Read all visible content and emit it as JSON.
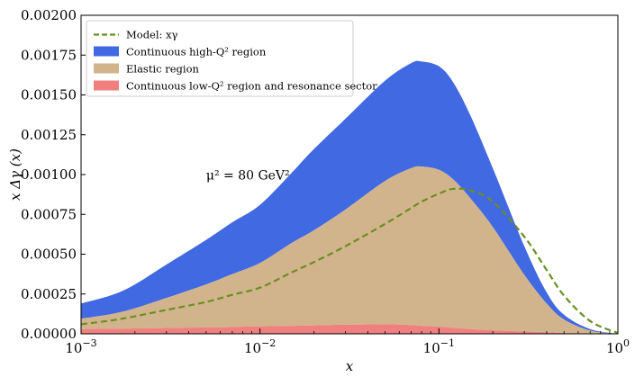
{
  "chart_data": {
    "type": "area",
    "x_scale": "log",
    "xlim": [
      0.001,
      1
    ],
    "ylim": [
      0,
      0.002
    ],
    "xlabel": "x",
    "ylabel": "x Δγ (x)",
    "x_ticks": [
      {
        "value": 0.001,
        "base": "10",
        "exp": "−3"
      },
      {
        "value": 0.01,
        "base": "10",
        "exp": "−2"
      },
      {
        "value": 0.1,
        "base": "10",
        "exp": "−1"
      },
      {
        "value": 1,
        "base": "10",
        "exp": "0"
      }
    ],
    "y_ticks": [
      {
        "value": 0,
        "label": "0.00000"
      },
      {
        "value": 0.00025,
        "label": "0.00025"
      },
      {
        "value": 0.0005,
        "label": "0.00050"
      },
      {
        "value": 0.00075,
        "label": "0.00075"
      },
      {
        "value": 0.001,
        "label": "0.00100"
      },
      {
        "value": 0.00125,
        "label": "0.00125"
      },
      {
        "value": 0.0015,
        "label": "0.00150"
      },
      {
        "value": 0.00175,
        "label": "0.00175"
      },
      {
        "value": 0.002,
        "label": "0.00200"
      }
    ],
    "grid": false,
    "legend_position": "top-left",
    "annotation": {
      "text": "μ² = 80 GeV²",
      "x": 0.005,
      "y": 0.00097
    },
    "x": [
      0.001,
      0.0015,
      0.002,
      0.003,
      0.005,
      0.007,
      0.01,
      0.015,
      0.02,
      0.03,
      0.05,
      0.07,
      0.08,
      0.1,
      0.12,
      0.15,
      0.2,
      0.3,
      0.4,
      0.5,
      0.7,
      1.0
    ],
    "series": [
      {
        "name": "Continuous low-Q² region and resonance sector",
        "kind": "band",
        "color": "#f08080",
        "lower": [
          0,
          0,
          0,
          0,
          0,
          0,
          0,
          0,
          0,
          0,
          0,
          0,
          0,
          0,
          0,
          0,
          0,
          0,
          0,
          0,
          0,
          0
        ],
        "upper": [
          3e-05,
          3.2e-05,
          3.4e-05,
          3.7e-05,
          4e-05,
          4.3e-05,
          4.7e-05,
          5e-05,
          5.3e-05,
          5.7e-05,
          6e-05,
          5.5e-05,
          5e-05,
          4.5e-05,
          3.8e-05,
          3e-05,
          2.2e-05,
          1.5e-05,
          1e-05,
          6e-06,
          2e-06,
          0
        ]
      },
      {
        "name": "Elastic region",
        "kind": "band",
        "color": "#d2b48c",
        "lower": [
          3e-05,
          3.2e-05,
          3.4e-05,
          3.7e-05,
          4e-05,
          4.3e-05,
          4.7e-05,
          5e-05,
          5.3e-05,
          5.7e-05,
          6e-05,
          5.5e-05,
          5e-05,
          4.5e-05,
          3.8e-05,
          3e-05,
          2.2e-05,
          1.5e-05,
          1e-05,
          6e-06,
          2e-06,
          0
        ],
        "upper": [
          9.5e-05,
          0.000125,
          0.00016,
          0.000225,
          0.00031,
          0.000375,
          0.000445,
          0.00057,
          0.00065,
          0.00078,
          0.00096,
          0.00104,
          0.00105,
          0.00103,
          0.00097,
          0.00085,
          0.00067,
          0.00037,
          0.00019,
          9e-05,
          2e-05,
          0
        ]
      },
      {
        "name": "Continuous high-Q² region",
        "kind": "band",
        "color": "#4169e1",
        "lower": [
          9.5e-05,
          0.000125,
          0.00016,
          0.000225,
          0.00031,
          0.000375,
          0.000445,
          0.00057,
          0.00065,
          0.00078,
          0.00096,
          0.00104,
          0.00105,
          0.00103,
          0.00097,
          0.00085,
          0.00067,
          0.00037,
          0.00019,
          9e-05,
          2e-05,
          0
        ],
        "upper": [
          0.00019,
          0.000245,
          0.00031,
          0.000435,
          0.00059,
          0.0007,
          0.00081,
          0.00101,
          0.00116,
          0.00135,
          0.00159,
          0.0017,
          0.00171,
          0.00168,
          0.00158,
          0.00137,
          0.00104,
          0.00055,
          0.00026,
          0.00012,
          3e-05,
          0
        ]
      },
      {
        "name": "Model: xγ",
        "kind": "line",
        "style": "dashed",
        "color": "#6b8e23",
        "y": [
          6e-05,
          8.5e-05,
          0.00011,
          0.00015,
          0.0002,
          0.000245,
          0.00029,
          0.000385,
          0.00045,
          0.00055,
          0.00069,
          0.00079,
          0.00083,
          0.00088,
          0.00091,
          0.0009,
          0.00083,
          0.00061,
          0.0004,
          0.00024,
          8e-05,
          5e-06
        ]
      }
    ],
    "legend": [
      {
        "label": "Model: xγ",
        "kind": "line",
        "color": "#6b8e23"
      },
      {
        "label": "Continuous high-Q² region",
        "kind": "patch",
        "color": "#4169e1"
      },
      {
        "label": "Elastic region",
        "kind": "patch",
        "color": "#d2b48c"
      },
      {
        "label": "Continuous low-Q² region and resonance sector",
        "kind": "patch",
        "color": "#f08080"
      }
    ]
  }
}
